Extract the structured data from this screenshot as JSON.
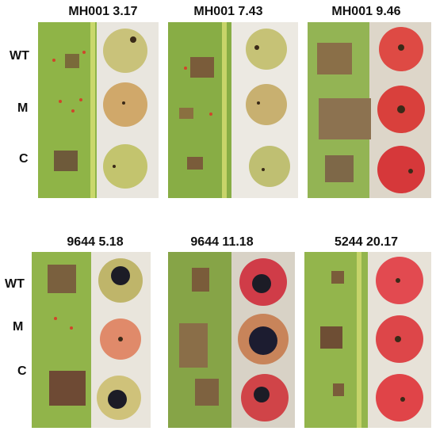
{
  "panels": [
    {
      "title": "MH001 3.17"
    },
    {
      "title": "MH001 7.43"
    },
    {
      "title": "MH001 9.46"
    },
    {
      "title": "9644 5.18"
    },
    {
      "title": "9644 11.18"
    },
    {
      "title": "5244 20.17"
    }
  ],
  "row_labels": {
    "top": [
      "WT",
      "M",
      "C"
    ],
    "bottom": [
      "WT",
      "M",
      "C"
    ]
  }
}
